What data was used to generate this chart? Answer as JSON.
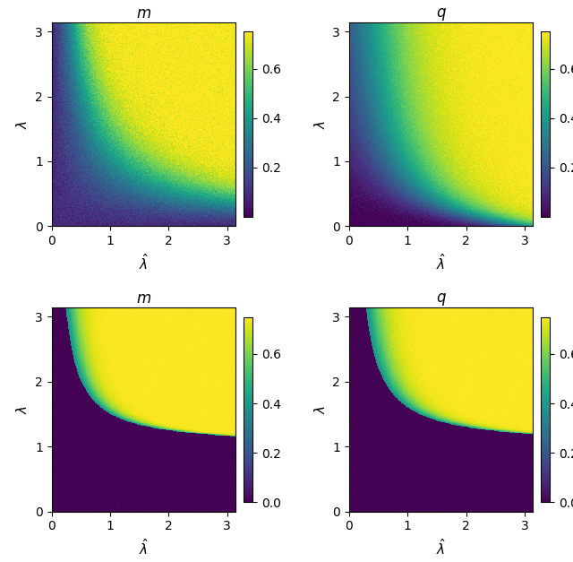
{
  "xlim": [
    0,
    3.14
  ],
  "ylim": [
    0,
    3.14
  ],
  "xlabel": "$\\hat{\\lambda}$",
  "ylabel": "$\\lambda$",
  "cmap": "viridis",
  "titles": [
    "$m$",
    "$q$",
    "$m$",
    "$q$"
  ],
  "N": 400
}
